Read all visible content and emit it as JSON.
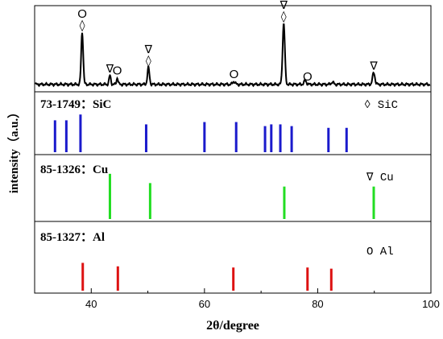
{
  "chart_data": {
    "type": "line",
    "xlabel": "2θ/degree",
    "ylabel": "intensity（a.u.）",
    "xlim": [
      30,
      100
    ],
    "x_ticks": [
      "40",
      "60",
      "80",
      "100"
    ],
    "grid": false,
    "pattern": {
      "baseline": 0.08,
      "peaks": [
        {
          "x": 38.4,
          "h": 0.72,
          "w": 0.25
        },
        {
          "x": 43.3,
          "h": 0.12,
          "w": 0.22
        },
        {
          "x": 44.6,
          "h": 0.09,
          "w": 0.2
        },
        {
          "x": 50.1,
          "h": 0.23,
          "w": 0.25
        },
        {
          "x": 65.2,
          "h": 0.04,
          "w": 0.3
        },
        {
          "x": 74.0,
          "h": 0.84,
          "w": 0.28
        },
        {
          "x": 77.8,
          "h": 0.05,
          "w": 0.3
        },
        {
          "x": 82.6,
          "h": 0.03,
          "w": 0.3
        },
        {
          "x": 89.9,
          "h": 0.16,
          "w": 0.3
        }
      ],
      "annotations": [
        {
          "x": 38.4,
          "symbols": [
            "O",
            "◊"
          ]
        },
        {
          "x": 43.3,
          "symbols": [
            "∇"
          ]
        },
        {
          "x": 44.6,
          "symbols": [
            "O"
          ]
        },
        {
          "x": 50.1,
          "symbols": [
            "∇",
            "◊"
          ]
        },
        {
          "x": 65.2,
          "symbols": [
            "O"
          ]
        },
        {
          "x": 74.0,
          "symbols": [
            "∇",
            "◊"
          ]
        },
        {
          "x": 78.2,
          "symbols": [
            "O"
          ]
        },
        {
          "x": 89.9,
          "symbols": [
            "∇"
          ]
        }
      ]
    },
    "references": [
      {
        "label": "73-1749：SiC",
        "legend": "◊ SiC",
        "color": "#1a1acc",
        "lines": [
          {
            "x": 33.6,
            "h": 0.55
          },
          {
            "x": 35.6,
            "h": 0.55
          },
          {
            "x": 38.1,
            "h": 0.65
          },
          {
            "x": 49.7,
            "h": 0.48
          },
          {
            "x": 60.0,
            "h": 0.52
          },
          {
            "x": 65.6,
            "h": 0.52
          },
          {
            "x": 70.7,
            "h": 0.45
          },
          {
            "x": 71.8,
            "h": 0.48
          },
          {
            "x": 73.4,
            "h": 0.48
          },
          {
            "x": 75.4,
            "h": 0.45
          },
          {
            "x": 81.9,
            "h": 0.42
          },
          {
            "x": 85.1,
            "h": 0.42
          }
        ]
      },
      {
        "label": "85-1326：Cu",
        "legend": "∇ Cu",
        "color": "#22dd22",
        "lines": [
          {
            "x": 43.3,
            "h": 0.78
          },
          {
            "x": 50.4,
            "h": 0.62
          },
          {
            "x": 74.1,
            "h": 0.56
          },
          {
            "x": 89.9,
            "h": 0.56
          }
        ]
      },
      {
        "label": "85-1327：Al",
        "legend": "O Al",
        "color": "#dd1111",
        "lines": [
          {
            "x": 38.5,
            "h": 0.48
          },
          {
            "x": 44.7,
            "h": 0.42
          },
          {
            "x": 65.1,
            "h": 0.4
          },
          {
            "x": 78.2,
            "h": 0.4
          },
          {
            "x": 82.4,
            "h": 0.38
          }
        ]
      }
    ]
  }
}
